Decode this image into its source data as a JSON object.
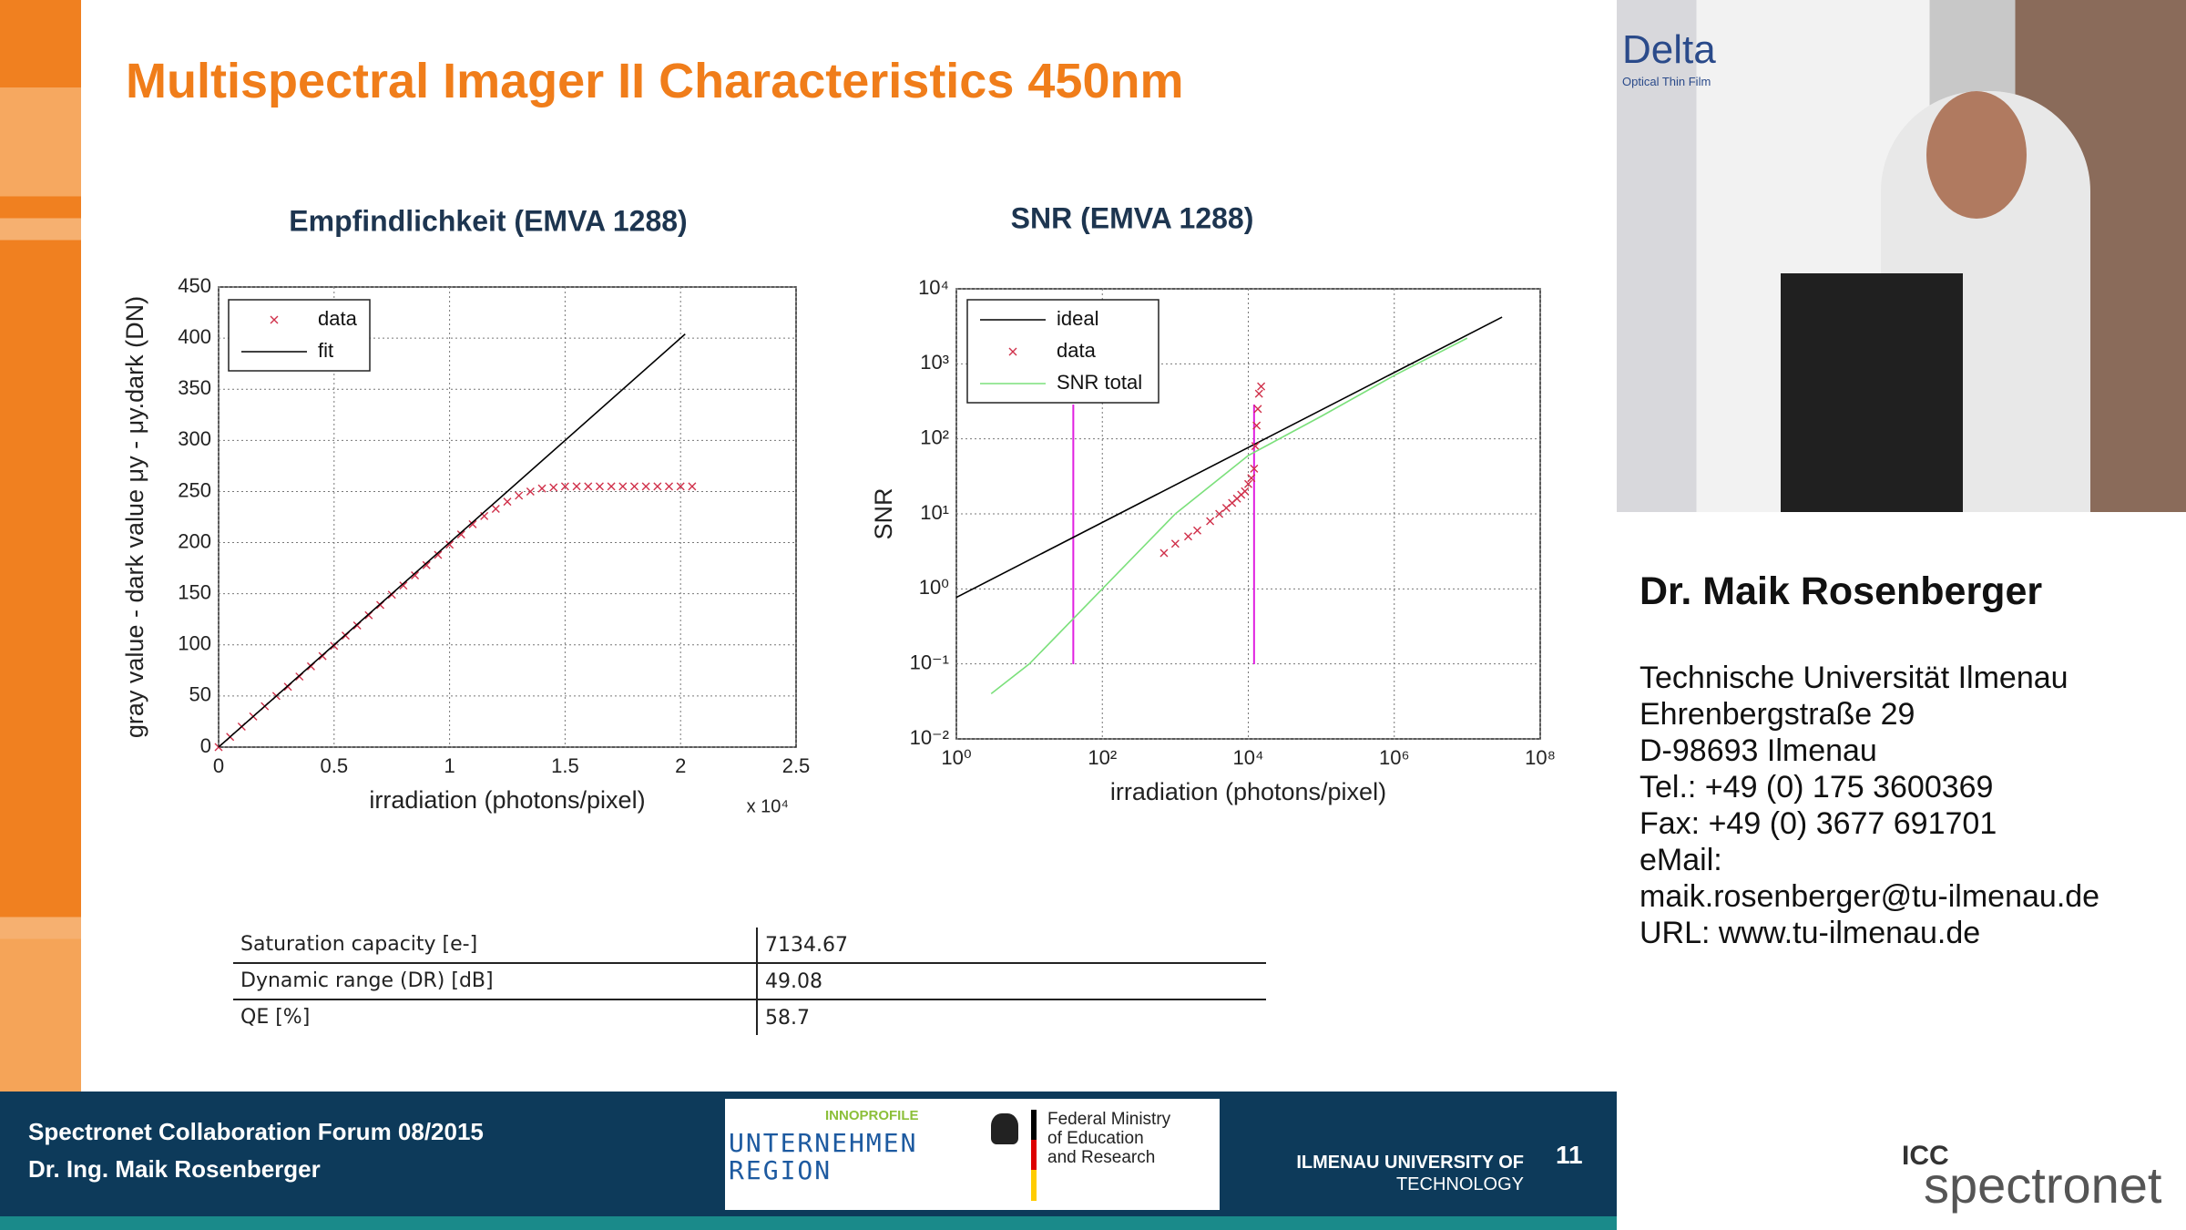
{
  "slide": {
    "title": "Multispectral Imager II Characteristics 450nm"
  },
  "chart_data": [
    {
      "type": "scatter",
      "title": "Empfindlichkeit (EMVA 1288)",
      "xlabel": "irradiation (photons/pixel)",
      "x_multiplier": "x 10⁴",
      "ylabel": "gray value - dark value μy - μy.dark (DN)",
      "xlim": [
        0,
        2.5
      ],
      "ylim": [
        0,
        450
      ],
      "xticks": [
        0,
        0.5,
        1,
        1.5,
        2,
        2.5
      ],
      "yticks": [
        0,
        50,
        100,
        150,
        200,
        250,
        300,
        350,
        400,
        450
      ],
      "grid": true,
      "log": false,
      "legend": "upper-left",
      "series": [
        {
          "name": "data",
          "mode": "markers",
          "color": "#d0304a",
          "x": [
            0,
            0.05,
            0.1,
            0.15,
            0.2,
            0.25,
            0.3,
            0.35,
            0.4,
            0.45,
            0.5,
            0.55,
            0.6,
            0.65,
            0.7,
            0.75,
            0.8,
            0.85,
            0.9,
            0.95,
            1,
            1.05,
            1.1,
            1.15,
            1.2,
            1.25,
            1.3,
            1.35,
            1.4,
            1.45,
            1.5,
            1.55,
            1.6,
            1.65,
            1.7,
            1.75,
            1.8,
            1.85,
            1.9,
            1.95,
            2,
            2.05
          ],
          "values": [
            0,
            10,
            20,
            30,
            40,
            50,
            59,
            69,
            79,
            89,
            99,
            109,
            119,
            129,
            139,
            149,
            158,
            168,
            178,
            188,
            198,
            208,
            218,
            226,
            233,
            240,
            246,
            250,
            253,
            254,
            255,
            255,
            255,
            255,
            255,
            255,
            255,
            255,
            255,
            255,
            255,
            255
          ]
        },
        {
          "name": "fit",
          "mode": "lines",
          "color": "#000000",
          "x": [
            0,
            2.02
          ],
          "values": [
            0,
            404
          ]
        }
      ]
    },
    {
      "type": "scatter",
      "title": "SNR (EMVA 1288)",
      "xlabel": "irradiation (photons/pixel)",
      "ylabel": "SNR",
      "xlim": [
        1,
        100000000
      ],
      "ylim": [
        0.01,
        10000
      ],
      "xticks": [
        {
          "value": 1,
          "label": "10⁰"
        },
        {
          "value": 100,
          "label": "10²"
        },
        {
          "value": 10000,
          "label": "10⁴"
        },
        {
          "value": 1000000,
          "label": "10⁶"
        },
        {
          "value": 100000000,
          "label": "10⁸"
        }
      ],
      "yticks": [
        {
          "value": 0.01,
          "label": "10⁻²"
        },
        {
          "value": 0.1,
          "label": "10⁻¹"
        },
        {
          "value": 1,
          "label": "10⁰"
        },
        {
          "value": 10,
          "label": "10¹"
        },
        {
          "value": 100,
          "label": "10²"
        },
        {
          "value": 1000,
          "label": "10³"
        },
        {
          "value": 10000,
          "label": "10⁴"
        }
      ],
      "grid": true,
      "log": true,
      "legend": "upper-left",
      "vlines": [
        40,
        12000
      ],
      "vline_color": "#e020e0",
      "series": [
        {
          "name": "ideal",
          "mode": "lines",
          "color": "#000000",
          "x": [
            1,
            30000000
          ],
          "values": [
            0.77,
            4196
          ]
        },
        {
          "name": "data",
          "mode": "markers",
          "color": "#d0304a",
          "x": [
            700,
            1000,
            1500,
            2000,
            3000,
            4000,
            5000,
            6000,
            7000,
            8000,
            9000,
            10000,
            11000,
            12000,
            12500,
            13000,
            13500,
            14000,
            15000
          ],
          "values": [
            3,
            4,
            5,
            6,
            8,
            10,
            12,
            14,
            16,
            18,
            20,
            25,
            30,
            40,
            80,
            150,
            250,
            400,
            500
          ]
        },
        {
          "name": "SNR total",
          "mode": "lines",
          "color": "#7be07b",
          "x": [
            3,
            10,
            100,
            1000,
            10000,
            100000,
            1000000,
            10000000
          ],
          "values": [
            0.04,
            0.1,
            1,
            10,
            60,
            200,
            700,
            2200
          ]
        }
      ]
    }
  ],
  "table": {
    "rows": [
      [
        "Saturation capacity [e-]",
        "7134.67"
      ],
      [
        "Dynamic range (DR) [dB]",
        "49.08"
      ],
      [
        "QE [%]",
        "58.7"
      ]
    ]
  },
  "speaker": {
    "name": "Dr. Maik Rosenberger",
    "lines": [
      "Technische Universität Ilmenau",
      "Ehrenbergstraße 29",
      "D-98693 Ilmenau",
      "Tel.: +49 (0) 175 3600369",
      "Fax: +49 (0) 3677 691701",
      "eMail:",
      "maik.rosenberger@tu-ilmenau.de",
      "URL: www.tu-ilmenau.de"
    ]
  },
  "video": {
    "texts": [
      "Delta",
      "Optical Thin Film"
    ]
  },
  "footer": {
    "event": "Spectronet Collaboration Forum 08/2015",
    "author": "Dr. Ing. Maik Rosenberger",
    "logo_program": "INNOPROFILE",
    "logo_region": "UNTERNEHMEN REGION",
    "ministry": [
      "Federal Ministry",
      "of Education",
      "and Research"
    ],
    "university": [
      "ILMENAU UNIVERSITY OF",
      "TECHNOLOGY"
    ],
    "page": "11"
  },
  "brand": {
    "icc": "ICC",
    "name": "spectronet"
  }
}
